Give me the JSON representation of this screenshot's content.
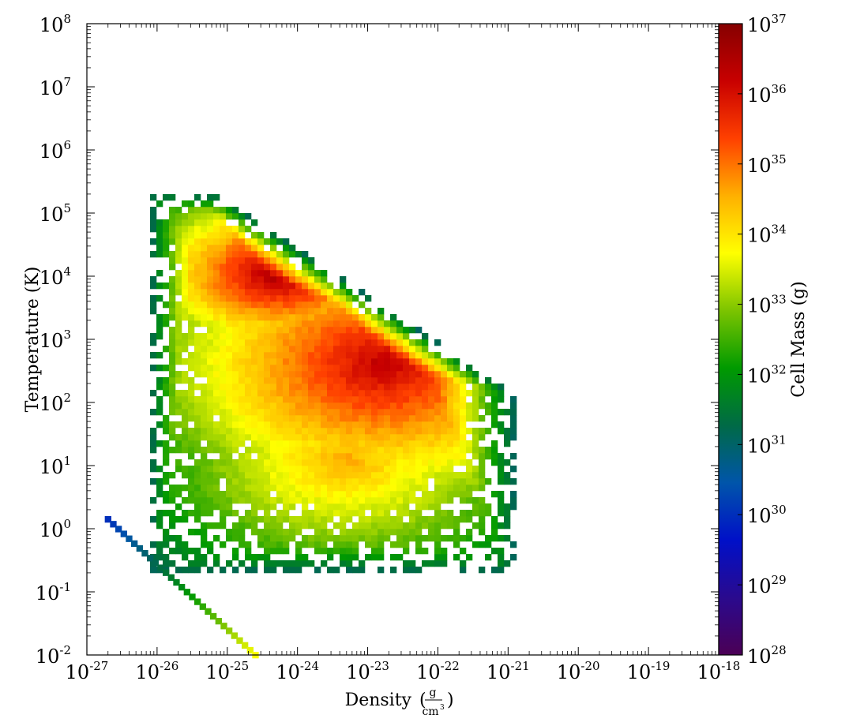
{
  "chart_data": {
    "type": "heatmap",
    "title": "",
    "xlabel": "Density",
    "xlabel_unit_num": "g",
    "xlabel_unit_den": "cm",
    "xlabel_unit_den_exp": "3",
    "ylabel": "Temperature  (K)",
    "colorbar_label": "Cell Mass  (g)",
    "xscale": "log",
    "yscale": "log",
    "xlim": [
      1e-27,
      1e-18
    ],
    "ylim": [
      0.01,
      100000000.0
    ],
    "colorbar_scale": "log",
    "colorbar_lim": [
      1e+28,
      1e+37
    ],
    "colormap": "spectral",
    "x_ticks": [
      {
        "base": "10",
        "exp": "-27"
      },
      {
        "base": "10",
        "exp": "-26"
      },
      {
        "base": "10",
        "exp": "-25"
      },
      {
        "base": "10",
        "exp": "-24"
      },
      {
        "base": "10",
        "exp": "-23"
      },
      {
        "base": "10",
        "exp": "-22"
      },
      {
        "base": "10",
        "exp": "-21"
      },
      {
        "base": "10",
        "exp": "-20"
      },
      {
        "base": "10",
        "exp": "-19"
      },
      {
        "base": "10",
        "exp": "-18"
      }
    ],
    "y_ticks": [
      {
        "base": "10",
        "exp": "-2"
      },
      {
        "base": "10",
        "exp": "-1"
      },
      {
        "base": "10",
        "exp": "0"
      },
      {
        "base": "10",
        "exp": "1"
      },
      {
        "base": "10",
        "exp": "2"
      },
      {
        "base": "10",
        "exp": "3"
      },
      {
        "base": "10",
        "exp": "4"
      },
      {
        "base": "10",
        "exp": "5"
      },
      {
        "base": "10",
        "exp": "6"
      },
      {
        "base": "10",
        "exp": "7"
      },
      {
        "base": "10",
        "exp": "8"
      }
    ],
    "colorbar_ticks": [
      {
        "base": "10",
        "exp": "28"
      },
      {
        "base": "10",
        "exp": "29"
      },
      {
        "base": "10",
        "exp": "30"
      },
      {
        "base": "10",
        "exp": "31"
      },
      {
        "base": "10",
        "exp": "32"
      },
      {
        "base": "10",
        "exp": "33"
      },
      {
        "base": "10",
        "exp": "34"
      },
      {
        "base": "10",
        "exp": "35"
      },
      {
        "base": "10",
        "exp": "36"
      },
      {
        "base": "10",
        "exp": "37"
      }
    ],
    "colormap_stops": [
      "#4b0055",
      "#2a0a8e",
      "#0010c8",
      "#0055aa",
      "#006a46",
      "#009a00",
      "#7cc400",
      "#ffff00",
      "#ffb000",
      "#ff4000",
      "#c80000",
      "#860000"
    ],
    "main_phase_blobs": [
      {
        "log_density": -24.25,
        "log_temperature": 4.05,
        "log_mass": 36.7,
        "spread_density": 0.28,
        "spread_temperature": 0.18
      },
      {
        "log_density": -22.8,
        "log_temperature": 2.6,
        "log_mass": 36.3,
        "spread_density": 0.5,
        "spread_temperature": 0.35
      },
      {
        "log_density": -23.3,
        "log_temperature": 1.1,
        "log_mass": 34.6,
        "spread_density": 0.6,
        "spread_temperature": 0.4
      },
      {
        "log_density": -25.6,
        "log_temperature": 2.2,
        "log_mass": 33.3,
        "spread_density": 0.35,
        "spread_temperature": 0.15
      },
      {
        "log_density": -25.8,
        "log_temperature": 4.6,
        "log_mass": 32.5,
        "spread_density": 0.3,
        "spread_temperature": 0.4
      }
    ],
    "low_temperature_tail": {
      "start": {
        "log_density": -26.7,
        "log_temperature": 0.15,
        "log_mass": 30.0
      },
      "end": {
        "log_density": -24.6,
        "log_temperature": -2.0,
        "log_mass": 33.7
      }
    }
  }
}
